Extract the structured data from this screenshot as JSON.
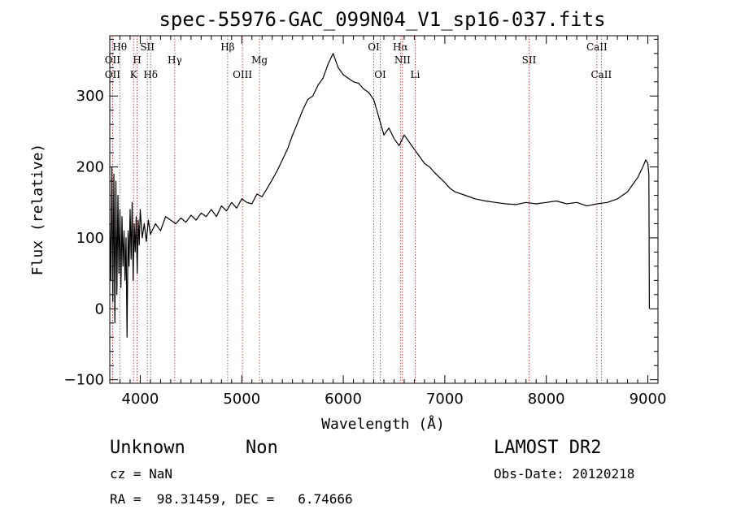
{
  "title": "spec-55976-GAC_099N04_V1_sp16-037.fits",
  "info": {
    "class": "Unknown",
    "subclass": "Non",
    "redshift": "cz = NaN",
    "coords": "RA =  98.31459, DEC =   6.74666",
    "survey": "LAMOST DR2",
    "obs_date": "Obs-Date: 20120218"
  },
  "chart_data": {
    "type": "line",
    "title": "spec-55976-GAC_099N04_V1_sp16-037.fits",
    "xlabel": "Wavelength (Å)",
    "ylabel": "Flux (relative)",
    "xlim": [
      3700,
      9100
    ],
    "ylim": [
      -105,
      385
    ],
    "x_ticks": [
      4000,
      5000,
      6000,
      7000,
      8000,
      9000
    ],
    "y_ticks": [
      -100,
      0,
      100,
      200,
      300
    ],
    "grid": false,
    "series": [
      {
        "points": [
          [
            3700,
            120
          ],
          [
            3710,
            40
          ],
          [
            3720,
            200
          ],
          [
            3730,
            10
          ],
          [
            3740,
            190
          ],
          [
            3750,
            -20
          ],
          [
            3760,
            180
          ],
          [
            3770,
            20
          ],
          [
            3780,
            160
          ],
          [
            3790,
            50
          ],
          [
            3800,
            140
          ],
          [
            3810,
            30
          ],
          [
            3820,
            130
          ],
          [
            3830,
            60
          ],
          [
            3840,
            110
          ],
          [
            3850,
            40
          ],
          [
            3860,
            100
          ],
          [
            3870,
            -40
          ],
          [
            3880,
            110
          ],
          [
            3890,
            60
          ],
          [
            3900,
            140
          ],
          [
            3910,
            70
          ],
          [
            3920,
            150
          ],
          [
            3930,
            40
          ],
          [
            3940,
            120
          ],
          [
            3950,
            80
          ],
          [
            3960,
            130
          ],
          [
            3970,
            50
          ],
          [
            3980,
            125
          ],
          [
            3990,
            90
          ],
          [
            4000,
            140
          ],
          [
            4020,
            100
          ],
          [
            4040,
            120
          ],
          [
            4060,
            95
          ],
          [
            4080,
            125
          ],
          [
            4100,
            105
          ],
          [
            4150,
            120
          ],
          [
            4200,
            110
          ],
          [
            4250,
            130
          ],
          [
            4300,
            125
          ],
          [
            4350,
            120
          ],
          [
            4400,
            128
          ],
          [
            4450,
            122
          ],
          [
            4500,
            132
          ],
          [
            4550,
            125
          ],
          [
            4600,
            135
          ],
          [
            4650,
            130
          ],
          [
            4700,
            140
          ],
          [
            4750,
            130
          ],
          [
            4800,
            145
          ],
          [
            4850,
            138
          ],
          [
            4900,
            150
          ],
          [
            4950,
            142
          ],
          [
            5000,
            155
          ],
          [
            5050,
            150
          ],
          [
            5100,
            148
          ],
          [
            5150,
            162
          ],
          [
            5200,
            158
          ],
          [
            5250,
            170
          ],
          [
            5300,
            182
          ],
          [
            5350,
            195
          ],
          [
            5400,
            210
          ],
          [
            5450,
            225
          ],
          [
            5500,
            245
          ],
          [
            5550,
            262
          ],
          [
            5600,
            280
          ],
          [
            5650,
            295
          ],
          [
            5700,
            300
          ],
          [
            5750,
            315
          ],
          [
            5800,
            325
          ],
          [
            5850,
            345
          ],
          [
            5900,
            360
          ],
          [
            5950,
            340
          ],
          [
            6000,
            330
          ],
          [
            6050,
            325
          ],
          [
            6100,
            320
          ],
          [
            6150,
            318
          ],
          [
            6200,
            310
          ],
          [
            6250,
            305
          ],
          [
            6300,
            295
          ],
          [
            6350,
            270
          ],
          [
            6400,
            245
          ],
          [
            6450,
            255
          ],
          [
            6500,
            240
          ],
          [
            6550,
            230
          ],
          [
            6600,
            245
          ],
          [
            6650,
            235
          ],
          [
            6700,
            225
          ],
          [
            6750,
            215
          ],
          [
            6800,
            205
          ],
          [
            6850,
            200
          ],
          [
            6900,
            192
          ],
          [
            6950,
            185
          ],
          [
            7000,
            178
          ],
          [
            7050,
            170
          ],
          [
            7100,
            165
          ],
          [
            7200,
            160
          ],
          [
            7300,
            155
          ],
          [
            7400,
            152
          ],
          [
            7500,
            150
          ],
          [
            7600,
            148
          ],
          [
            7700,
            147
          ],
          [
            7800,
            150
          ],
          [
            7900,
            148
          ],
          [
            8000,
            150
          ],
          [
            8100,
            152
          ],
          [
            8200,
            148
          ],
          [
            8300,
            150
          ],
          [
            8400,
            145
          ],
          [
            8500,
            148
          ],
          [
            8600,
            150
          ],
          [
            8700,
            155
          ],
          [
            8800,
            165
          ],
          [
            8850,
            175
          ],
          [
            8900,
            185
          ],
          [
            8950,
            200
          ],
          [
            8980,
            210
          ],
          [
            9000,
            205
          ],
          [
            9010,
            190
          ],
          [
            9015,
            0
          ]
        ]
      }
    ],
    "emission_lines": [
      {
        "label": "Hθ",
        "wavelength": 3798,
        "row": 0
      },
      {
        "label": "OII",
        "wavelength": 3727,
        "row": 1
      },
      {
        "label": "OII",
        "wavelength": 3727,
        "row": 2
      },
      {
        "label": "H",
        "wavelength": 3969,
        "row": 1
      },
      {
        "label": "K",
        "wavelength": 3934,
        "row": 2
      },
      {
        "label": "SII",
        "wavelength": 4070,
        "row": 0
      },
      {
        "label": "Hδ",
        "wavelength": 4102,
        "row": 2
      },
      {
        "label": "Hγ",
        "wavelength": 4340,
        "row": 1
      },
      {
        "label": "Hβ",
        "wavelength": 4861,
        "row": 0
      },
      {
        "label": "OIII",
        "wavelength": 5007,
        "row": 2
      },
      {
        "label": "Mg",
        "wavelength": 5175,
        "row": 1
      },
      {
        "label": "OI",
        "wavelength": 6300,
        "row": 0
      },
      {
        "label": "OI",
        "wavelength": 6364,
        "row": 2
      },
      {
        "label": "Hα",
        "wavelength": 6563,
        "row": 0
      },
      {
        "label": "NII",
        "wavelength": 6583,
        "row": 1
      },
      {
        "label": "Li",
        "wavelength": 6708,
        "row": 2
      },
      {
        "label": "SII",
        "wavelength": 7830,
        "row": 1
      },
      {
        "label": "CaII",
        "wavelength": 8498,
        "row": 0
      },
      {
        "label": "CaII",
        "wavelength": 8542,
        "row": 2
      }
    ]
  }
}
